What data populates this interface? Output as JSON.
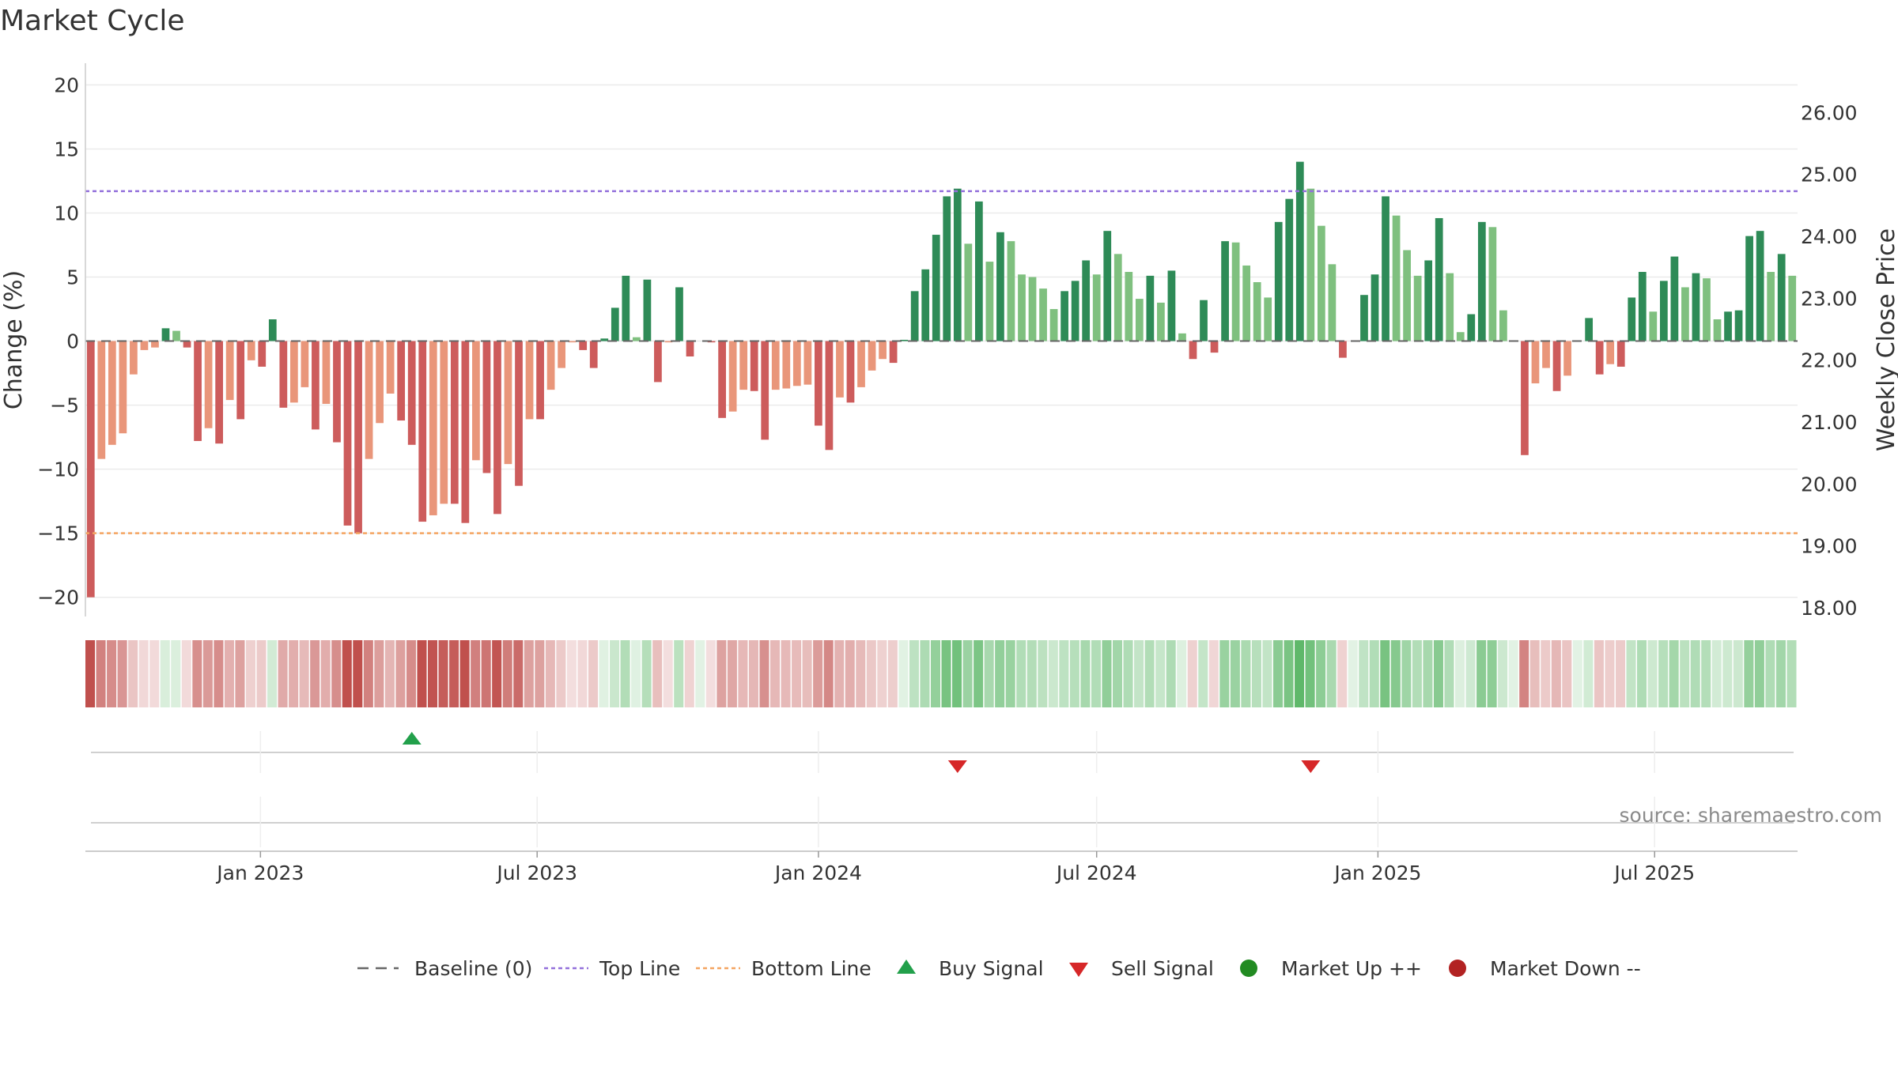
{
  "chart_data": {
    "type": "bar",
    "title": "Market Cycle",
    "ylabel": "Change (%)",
    "y2label": "Weekly Close Price",
    "source": "source: sharemaestro.com",
    "ylim": [
      -21.5,
      22
    ],
    "y2lim": [
      17.86,
      26.86
    ],
    "yticks": [
      20,
      15,
      10,
      5,
      0,
      -5,
      -10,
      -15,
      -20
    ],
    "y2ticks": [
      "26.00",
      "25.00",
      "24.00",
      "23.00",
      "22.00",
      "21.00",
      "20.00",
      "19.00",
      "18.00"
    ],
    "top_line": 11.7,
    "bottom_line": -15.0,
    "baseline": 0,
    "x_start": "2022-09-12",
    "week_days": 7,
    "xticks": [
      {
        "date": "2023-01-01",
        "label": "Jan 2023"
      },
      {
        "date": "2023-07-01",
        "label": "Jul 2023"
      },
      {
        "date": "2024-01-01",
        "label": "Jan 2024"
      },
      {
        "date": "2024-07-01",
        "label": "Jul 2024"
      },
      {
        "date": "2025-01-01",
        "label": "Jan 2025"
      },
      {
        "date": "2025-07-01",
        "label": "Jul 2025"
      }
    ],
    "values": [
      -20.0,
      -9.2,
      -8.1,
      -7.2,
      -2.6,
      -0.7,
      -0.5,
      1.0,
      0.8,
      -0.5,
      -7.8,
      -6.8,
      -8.0,
      -4.6,
      -6.1,
      -1.5,
      -2.0,
      1.7,
      -5.2,
      -4.8,
      -3.6,
      -6.9,
      -4.9,
      -7.9,
      -14.4,
      -15.0,
      -9.2,
      -6.4,
      -4.1,
      -6.2,
      -8.1,
      -14.1,
      -13.6,
      -12.7,
      -12.7,
      -14.2,
      -9.3,
      -10.3,
      -13.5,
      -9.6,
      -11.3,
      -6.1,
      -6.1,
      -3.8,
      -2.1,
      -0.1,
      -0.7,
      -2.1,
      0.2,
      2.6,
      5.1,
      0.3,
      4.8,
      -3.2,
      -0.1,
      4.2,
      -1.2,
      0,
      -0.1,
      -6.0,
      -5.5,
      -3.8,
      -3.9,
      -7.7,
      -3.8,
      -3.7,
      -3.5,
      -3.4,
      -6.6,
      -8.5,
      -4.4,
      -4.8,
      -3.6,
      -2.3,
      -1.4,
      -1.7,
      0.1,
      3.9,
      5.6,
      8.3,
      11.3,
      11.9,
      7.6,
      10.9,
      6.2,
      8.5,
      7.8,
      5.2,
      5.0,
      4.1,
      2.5,
      3.9,
      4.7,
      6.3,
      5.2,
      8.6,
      6.8,
      5.4,
      3.3,
      5.1,
      3.0,
      5.5,
      0.6,
      -1.4,
      3.2,
      -0.9,
      7.8,
      7.7,
      5.9,
      4.6,
      3.4,
      9.3,
      11.1,
      14.0,
      11.9,
      9.0,
      6.0,
      -1.3,
      0,
      3.6,
      5.2,
      11.3,
      9.8,
      7.1,
      5.1,
      6.3,
      9.6,
      5.3,
      0.7,
      2.1,
      9.3,
      8.9,
      2.4,
      0,
      -8.9,
      -3.3,
      -2.1,
      -3.9,
      -2.7,
      0,
      1.8,
      -2.6,
      -1.8,
      -2.0,
      3.4,
      5.4,
      2.3,
      4.7,
      6.6,
      4.2,
      5.3,
      4.9,
      1.7,
      2.3,
      2.4,
      8.2,
      8.6,
      5.4,
      6.8,
      5.1
    ],
    "buy_signals": [
      "2023-04-10"
    ],
    "sell_signals": [
      "2024-04-01",
      "2024-11-18"
    ],
    "legend": [
      "Baseline (0)",
      "Top Line",
      "Bottom Line",
      "Buy Signal",
      "Sell Signal",
      "Market Up ++",
      "Market Down --"
    ],
    "colors": {
      "strong_up": "#2e8b57",
      "up": "#7fc07f",
      "strong_down": "#cd5c5c",
      "down": "#e9967a",
      "top_line": "#9370db",
      "bottom_line": "#f4a460",
      "buy": "#22a04b",
      "sell": "#d62728",
      "market_up": "#228b22",
      "market_down": "#b22222",
      "baseline": "#666666"
    },
    "grid": true,
    "legend_position": "bottom"
  }
}
